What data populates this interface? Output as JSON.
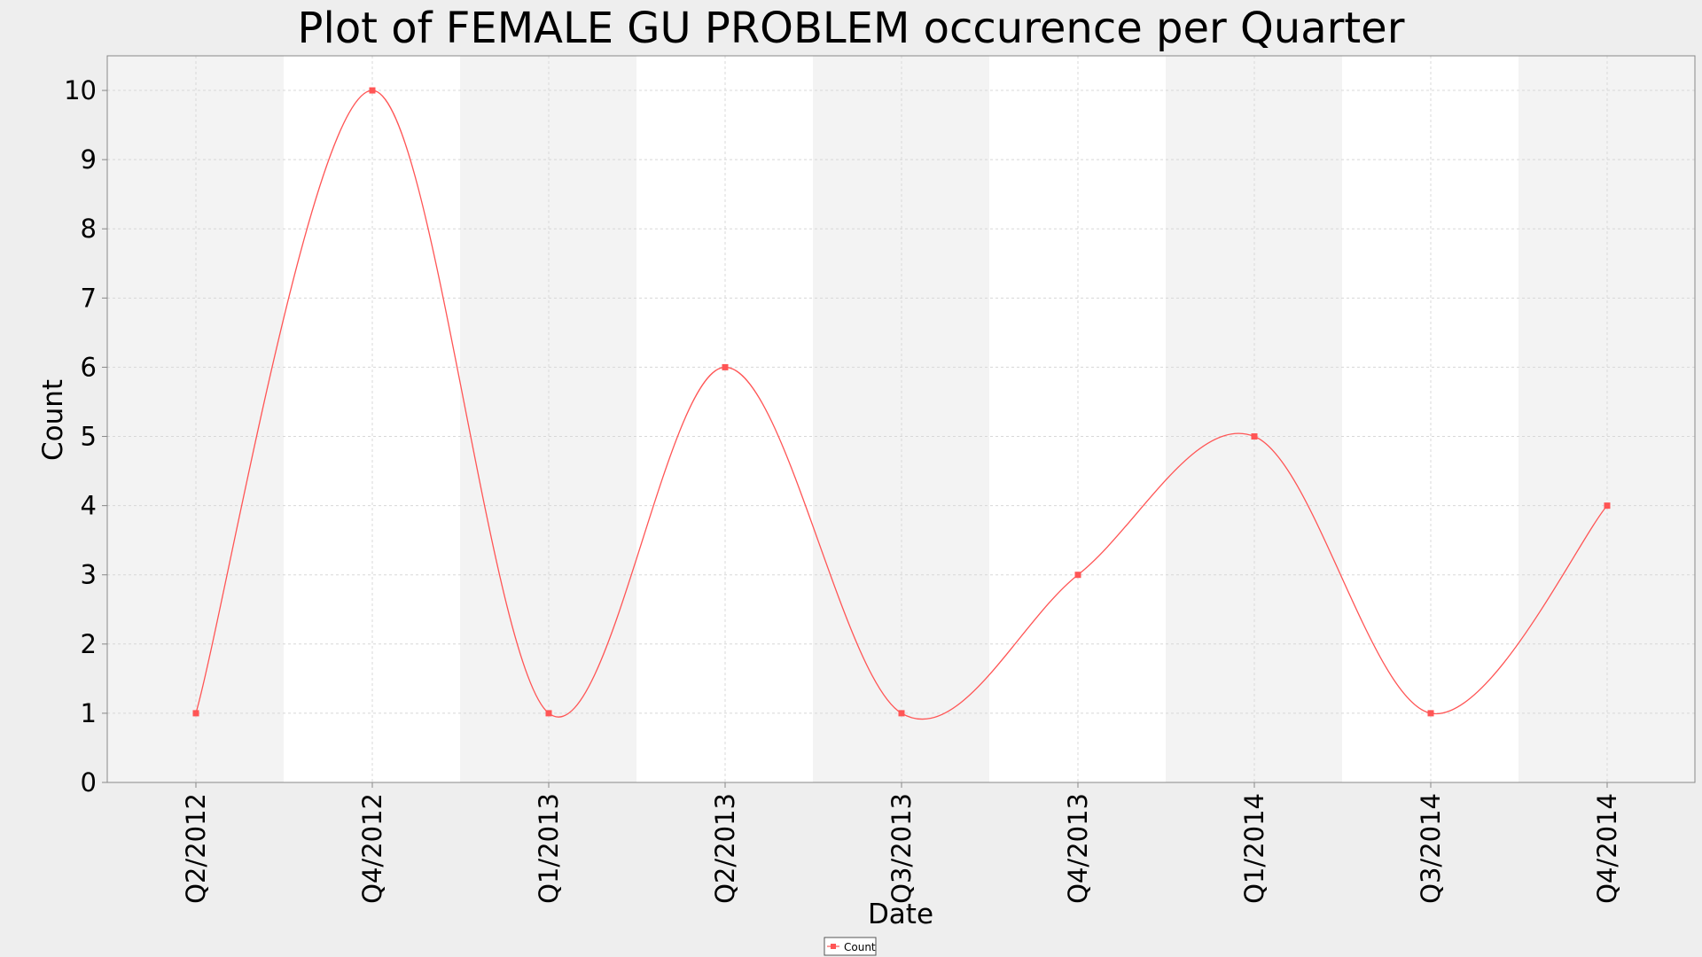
{
  "chart_data": {
    "type": "line",
    "title": "Plot of FEMALE GU PROBLEM occurence per Quarter",
    "xlabel": "Date",
    "ylabel": "Count",
    "ylim": [
      0,
      10.5
    ],
    "yticks": [
      0,
      1,
      2,
      3,
      4,
      5,
      6,
      7,
      8,
      9,
      10
    ],
    "categories": [
      "Q2/2012",
      "Q4/2012",
      "Q1/2013",
      "Q2/2013",
      "Q3/2013",
      "Q4/2013",
      "Q1/2014",
      "Q3/2014",
      "Q4/2014"
    ],
    "series": [
      {
        "name": "Count",
        "color": "#ff5555",
        "values": [
          1,
          10,
          1,
          6,
          1,
          3,
          5,
          1,
          4
        ]
      }
    ],
    "legend": {
      "position": "bottom-center",
      "entries": [
        "Count"
      ]
    },
    "grid": true,
    "band_colors": [
      "#f3f3f3",
      "#ffffff"
    ]
  }
}
